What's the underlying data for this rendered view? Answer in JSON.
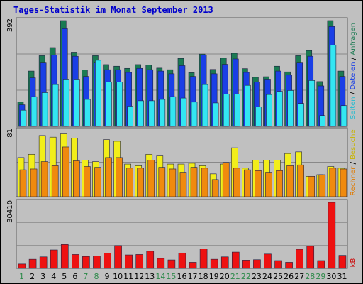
{
  "title": "Tages-Statistik im Monat September 2013",
  "colors": {
    "plot_bg": "#c0c0c0",
    "grid": "#888888",
    "hits": "#1a7a52",
    "files": "#1a3fe6",
    "pages": "#33e6f2",
    "visits": "#f2ee1a",
    "sites": "#f08a0e",
    "kbytes": "#ee1111",
    "weekday_label": "#000000",
    "weekend_label": "#2d8a4a",
    "right_label_top_hits": "#1a7a52",
    "right_label_top_files": "#1a3fe6",
    "right_label_top_pages": "#22bcd0",
    "right_label_mid_sites": "#e07a00",
    "right_label_mid_visits": "#c8b400",
    "right_label_bottom": "#cc0000"
  },
  "chart_data": [
    {
      "type": "bar",
      "panel": "top",
      "ylabel": "392",
      "ylim": [
        0,
        392
      ],
      "grid": true,
      "right_labels": [
        "Anfragen",
        "Dateien",
        "Seiten"
      ],
      "categories": [
        "1",
        "2",
        "3",
        "4",
        "5",
        "6",
        "7",
        "8",
        "9",
        "10",
        "11",
        "12",
        "13",
        "14",
        "15",
        "16",
        "17",
        "18",
        "19",
        "20",
        "21",
        "22",
        "23",
        "24",
        "25",
        "26",
        "27",
        "28",
        "29",
        "30",
        "31"
      ],
      "series": [
        {
          "name": "Anfragen",
          "values": [
            90,
            205,
            262,
            292,
            392,
            275,
            209,
            262,
            229,
            223,
            215,
            229,
            227,
            216,
            210,
            252,
            199,
            268,
            211,
            253,
            271,
            214,
            182,
            184,
            223,
            202,
            262,
            281,
            166,
            392,
            205
          ]
        },
        {
          "name": "Dateien",
          "values": [
            80,
            180,
            235,
            265,
            362,
            260,
            185,
            235,
            210,
            210,
            200,
            215,
            210,
            205,
            195,
            225,
            185,
            265,
            195,
            230,
            250,
            200,
            165,
            175,
            205,
            190,
            235,
            260,
            150,
            370,
            185
          ]
        },
        {
          "name": "Seiten",
          "values": [
            60,
            110,
            125,
            155,
            175,
            175,
            100,
            245,
            165,
            164,
            75,
            95,
            95,
            100,
            110,
            105,
            90,
            155,
            87,
            120,
            120,
            152,
            72,
            118,
            130,
            133,
            85,
            170,
            40,
            301,
            77
          ]
        }
      ]
    },
    {
      "type": "bar",
      "panel": "middle",
      "ylabel": "81",
      "ylim": [
        0,
        81
      ],
      "grid": true,
      "right_labels": [
        "Rechner",
        "Besuche"
      ],
      "categories": [
        "1",
        "2",
        "3",
        "4",
        "5",
        "6",
        "7",
        "8",
        "9",
        "10",
        "11",
        "12",
        "13",
        "14",
        "15",
        "16",
        "17",
        "18",
        "19",
        "20",
        "21",
        "22",
        "23",
        "24",
        "25",
        "26",
        "27",
        "28",
        "29",
        "30",
        "31"
      ],
      "series": [
        {
          "name": "Besuche",
          "values": [
            48,
            52,
            75,
            73,
            77,
            72,
            45,
            43,
            70,
            68,
            40,
            38,
            52,
            50,
            40,
            40,
            41,
            38,
            28,
            40,
            60,
            35,
            45,
            45,
            45,
            53,
            55,
            25,
            27,
            37,
            35
          ]
        },
        {
          "name": "Rechner",
          "values": [
            33,
            34,
            43,
            38,
            61,
            44,
            37,
            36,
            48,
            48,
            35,
            35,
            45,
            36,
            34,
            30,
            36,
            35,
            21,
            42,
            35,
            33,
            32,
            30,
            32,
            38,
            39,
            25,
            27,
            35,
            34
          ]
        }
      ]
    },
    {
      "type": "bar",
      "panel": "bottom",
      "ylabel": "30410",
      "ylim": [
        0,
        30410
      ],
      "grid": true,
      "right_labels": [
        "kB"
      ],
      "categories": [
        "1",
        "2",
        "3",
        "4",
        "5",
        "6",
        "7",
        "8",
        "9",
        "10",
        "11",
        "12",
        "13",
        "14",
        "15",
        "16",
        "17",
        "18",
        "19",
        "20",
        "21",
        "22",
        "23",
        "24",
        "25",
        "26",
        "27",
        "28",
        "29",
        "30",
        "31"
      ],
      "series": [
        {
          "name": "kB",
          "values": [
            2000,
            4200,
            5300,
            8500,
            11000,
            6400,
            5500,
            5700,
            7000,
            10500,
            6200,
            6400,
            7900,
            4600,
            3900,
            7100,
            2800,
            9000,
            4200,
            5300,
            7500,
            3800,
            4000,
            6600,
            3600,
            2800,
            8800,
            10200,
            3600,
            30410,
            6000
          ]
        }
      ]
    }
  ],
  "x_axis": {
    "labels": [
      "1",
      "2",
      "3",
      "4",
      "5",
      "6",
      "7",
      "8",
      "9",
      "10",
      "11",
      "12",
      "13",
      "14",
      "15",
      "16",
      "17",
      "18",
      "19",
      "20",
      "21",
      "22",
      "23",
      "24",
      "25",
      "26",
      "27",
      "28",
      "29",
      "30",
      "31"
    ],
    "weekend_days": [
      "1",
      "7",
      "8",
      "14",
      "15",
      "21",
      "22",
      "28",
      "29"
    ]
  }
}
